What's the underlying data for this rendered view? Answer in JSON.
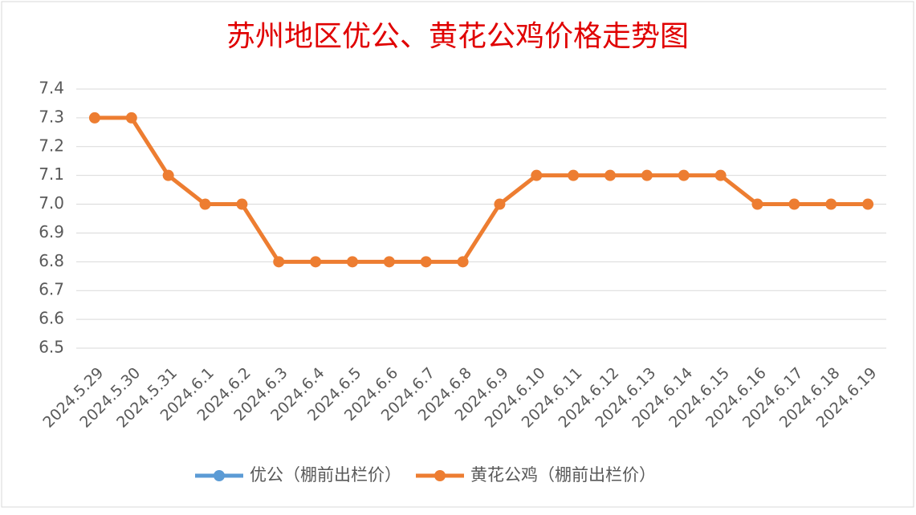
{
  "chart_data": {
    "type": "line",
    "title": "苏州地区优公、黄花公鸡价格走势图",
    "categories": [
      "2024.5.29",
      "2024.5.30",
      "2024.5.31",
      "2024.6.1",
      "2024.6.2",
      "2024.6.3",
      "2024.6.4",
      "2024.6.5",
      "2024.6.6",
      "2024.6.7",
      "2024.6.8",
      "2024.6.9",
      "2024.6.10",
      "2024.6.11",
      "2024.6.12",
      "2024.6.13",
      "2024.6.14",
      "2024.6.15",
      "2024.6.16",
      "2024.6.17",
      "2024.6.18",
      "2024.6.19"
    ],
    "series": [
      {
        "name": "优公（棚前出栏价）",
        "color": "#5b9bd5",
        "values": [
          null,
          null,
          null,
          null,
          null,
          null,
          null,
          null,
          null,
          null,
          null,
          null,
          null,
          null,
          null,
          null,
          null,
          null,
          null,
          null,
          null,
          null
        ]
      },
      {
        "name": "黄花公鸡（棚前出栏价）",
        "color": "#ed7d31",
        "values": [
          7.3,
          7.3,
          7.1,
          7.0,
          7.0,
          6.8,
          6.8,
          6.8,
          6.8,
          6.8,
          6.8,
          7.0,
          7.1,
          7.1,
          7.1,
          7.1,
          7.1,
          7.1,
          7.0,
          7.0,
          7.0,
          7.0
        ]
      }
    ],
    "ylim": [
      6.5,
      7.4
    ],
    "yticks": [
      6.5,
      6.6,
      6.7,
      6.8,
      6.9,
      {
        "value": 7,
        "label": "7.0"
      },
      7.1,
      7.2,
      7.3,
      7.4
    ],
    "grid": true,
    "legend": "bottom"
  }
}
